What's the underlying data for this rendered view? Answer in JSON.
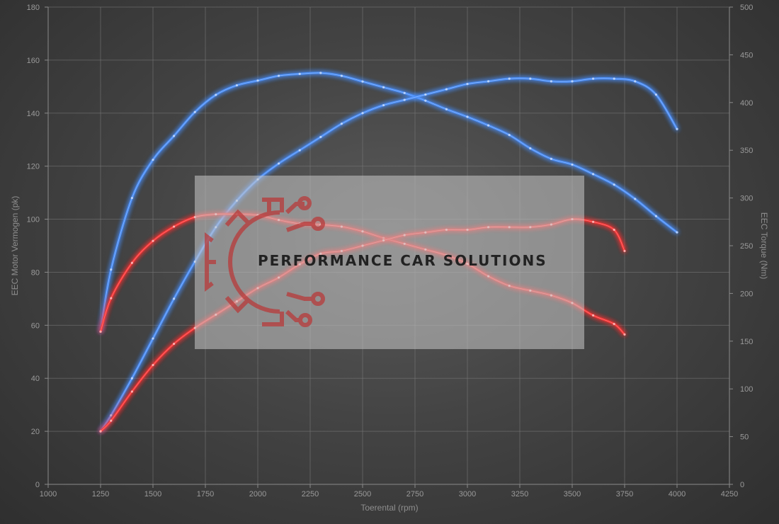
{
  "chart_data": {
    "type": "line",
    "xlabel": "Toerental (rpm)",
    "ylabel_left": "EEC Motor Vermogen (pk)",
    "ylabel_right": "EEC Torque (Nm)",
    "xlim": [
      1000,
      4250
    ],
    "ylim_left": [
      0,
      180
    ],
    "ylim_right": [
      0,
      500
    ],
    "x_ticks": [
      1000,
      1250,
      1500,
      1750,
      2000,
      2250,
      2500,
      2750,
      3000,
      3250,
      3500,
      3750,
      4000,
      4250
    ],
    "y_left_ticks": [
      0,
      20,
      40,
      60,
      80,
      100,
      120,
      140,
      160,
      180
    ],
    "y_right_ticks": [
      0,
      50,
      100,
      150,
      200,
      250,
      300,
      350,
      400,
      450,
      500
    ],
    "grid": true,
    "series": [
      {
        "axis": "right",
        "color": "#4a90ff",
        "points": [
          [
            1250,
            160
          ],
          [
            1300,
            225
          ],
          [
            1400,
            300
          ],
          [
            1500,
            340
          ],
          [
            1600,
            365
          ],
          [
            1700,
            390
          ],
          [
            1800,
            408
          ],
          [
            1900,
            418
          ],
          [
            2000,
            423
          ],
          [
            2100,
            428
          ],
          [
            2200,
            430
          ],
          [
            2300,
            431
          ],
          [
            2400,
            428
          ],
          [
            2500,
            422
          ],
          [
            2600,
            416
          ],
          [
            2700,
            410
          ],
          [
            2800,
            402
          ],
          [
            2900,
            393
          ],
          [
            3000,
            385
          ],
          [
            3100,
            376
          ],
          [
            3200,
            366
          ],
          [
            3300,
            352
          ],
          [
            3400,
            341
          ],
          [
            3500,
            335
          ],
          [
            3600,
            325
          ],
          [
            3700,
            314
          ],
          [
            3800,
            299
          ],
          [
            3900,
            281
          ],
          [
            4000,
            264
          ]
        ]
      },
      {
        "axis": "left",
        "color": "#4a90ff",
        "points": [
          [
            1250,
            20
          ],
          [
            1300,
            26
          ],
          [
            1400,
            40
          ],
          [
            1500,
            55
          ],
          [
            1600,
            70
          ],
          [
            1700,
            84
          ],
          [
            1800,
            97
          ],
          [
            1900,
            107
          ],
          [
            2000,
            115
          ],
          [
            2100,
            121
          ],
          [
            2200,
            126
          ],
          [
            2300,
            131
          ],
          [
            2400,
            136
          ],
          [
            2500,
            140
          ],
          [
            2600,
            143
          ],
          [
            2700,
            145
          ],
          [
            2800,
            147
          ],
          [
            2900,
            149
          ],
          [
            3000,
            151
          ],
          [
            3100,
            152
          ],
          [
            3200,
            153
          ],
          [
            3300,
            153
          ],
          [
            3400,
            152
          ],
          [
            3500,
            152
          ],
          [
            3600,
            153
          ],
          [
            3700,
            153
          ],
          [
            3800,
            152
          ],
          [
            3900,
            147
          ],
          [
            4000,
            134
          ]
        ]
      },
      {
        "axis": "right",
        "color": "#ff3333",
        "points": [
          [
            1250,
            160
          ],
          [
            1300,
            195
          ],
          [
            1400,
            232
          ],
          [
            1500,
            255
          ],
          [
            1600,
            270
          ],
          [
            1700,
            280
          ],
          [
            1800,
            283
          ],
          [
            1900,
            283
          ],
          [
            2000,
            282
          ],
          [
            2100,
            277
          ],
          [
            2200,
            273
          ],
          [
            2300,
            272
          ],
          [
            2400,
            270
          ],
          [
            2500,
            265
          ],
          [
            2600,
            258
          ],
          [
            2700,
            252
          ],
          [
            2800,
            246
          ],
          [
            2900,
            240
          ],
          [
            3000,
            231
          ],
          [
            3100,
            218
          ],
          [
            3200,
            208
          ],
          [
            3300,
            203
          ],
          [
            3400,
            198
          ],
          [
            3500,
            190
          ],
          [
            3600,
            177
          ],
          [
            3700,
            168
          ],
          [
            3750,
            157
          ]
        ]
      },
      {
        "axis": "left",
        "color": "#ff3333",
        "points": [
          [
            1250,
            20
          ],
          [
            1300,
            24
          ],
          [
            1400,
            35
          ],
          [
            1500,
            45
          ],
          [
            1600,
            53
          ],
          [
            1700,
            59
          ],
          [
            1800,
            64
          ],
          [
            1900,
            69
          ],
          [
            2000,
            74
          ],
          [
            2100,
            78
          ],
          [
            2200,
            83
          ],
          [
            2300,
            87
          ],
          [
            2400,
            88
          ],
          [
            2500,
            90
          ],
          [
            2600,
            92
          ],
          [
            2700,
            94
          ],
          [
            2800,
            95
          ],
          [
            2900,
            96
          ],
          [
            3000,
            96
          ],
          [
            3100,
            97
          ],
          [
            3200,
            97
          ],
          [
            3300,
            97
          ],
          [
            3400,
            98
          ],
          [
            3500,
            100
          ],
          [
            3600,
            99
          ],
          [
            3700,
            96
          ],
          [
            3750,
            88
          ]
        ]
      }
    ]
  },
  "watermark": {
    "text": "PERFORMANCE CAR SOLUTIONS",
    "icon": "gear-circuit-icon",
    "logo_color": "#b83a3a"
  }
}
